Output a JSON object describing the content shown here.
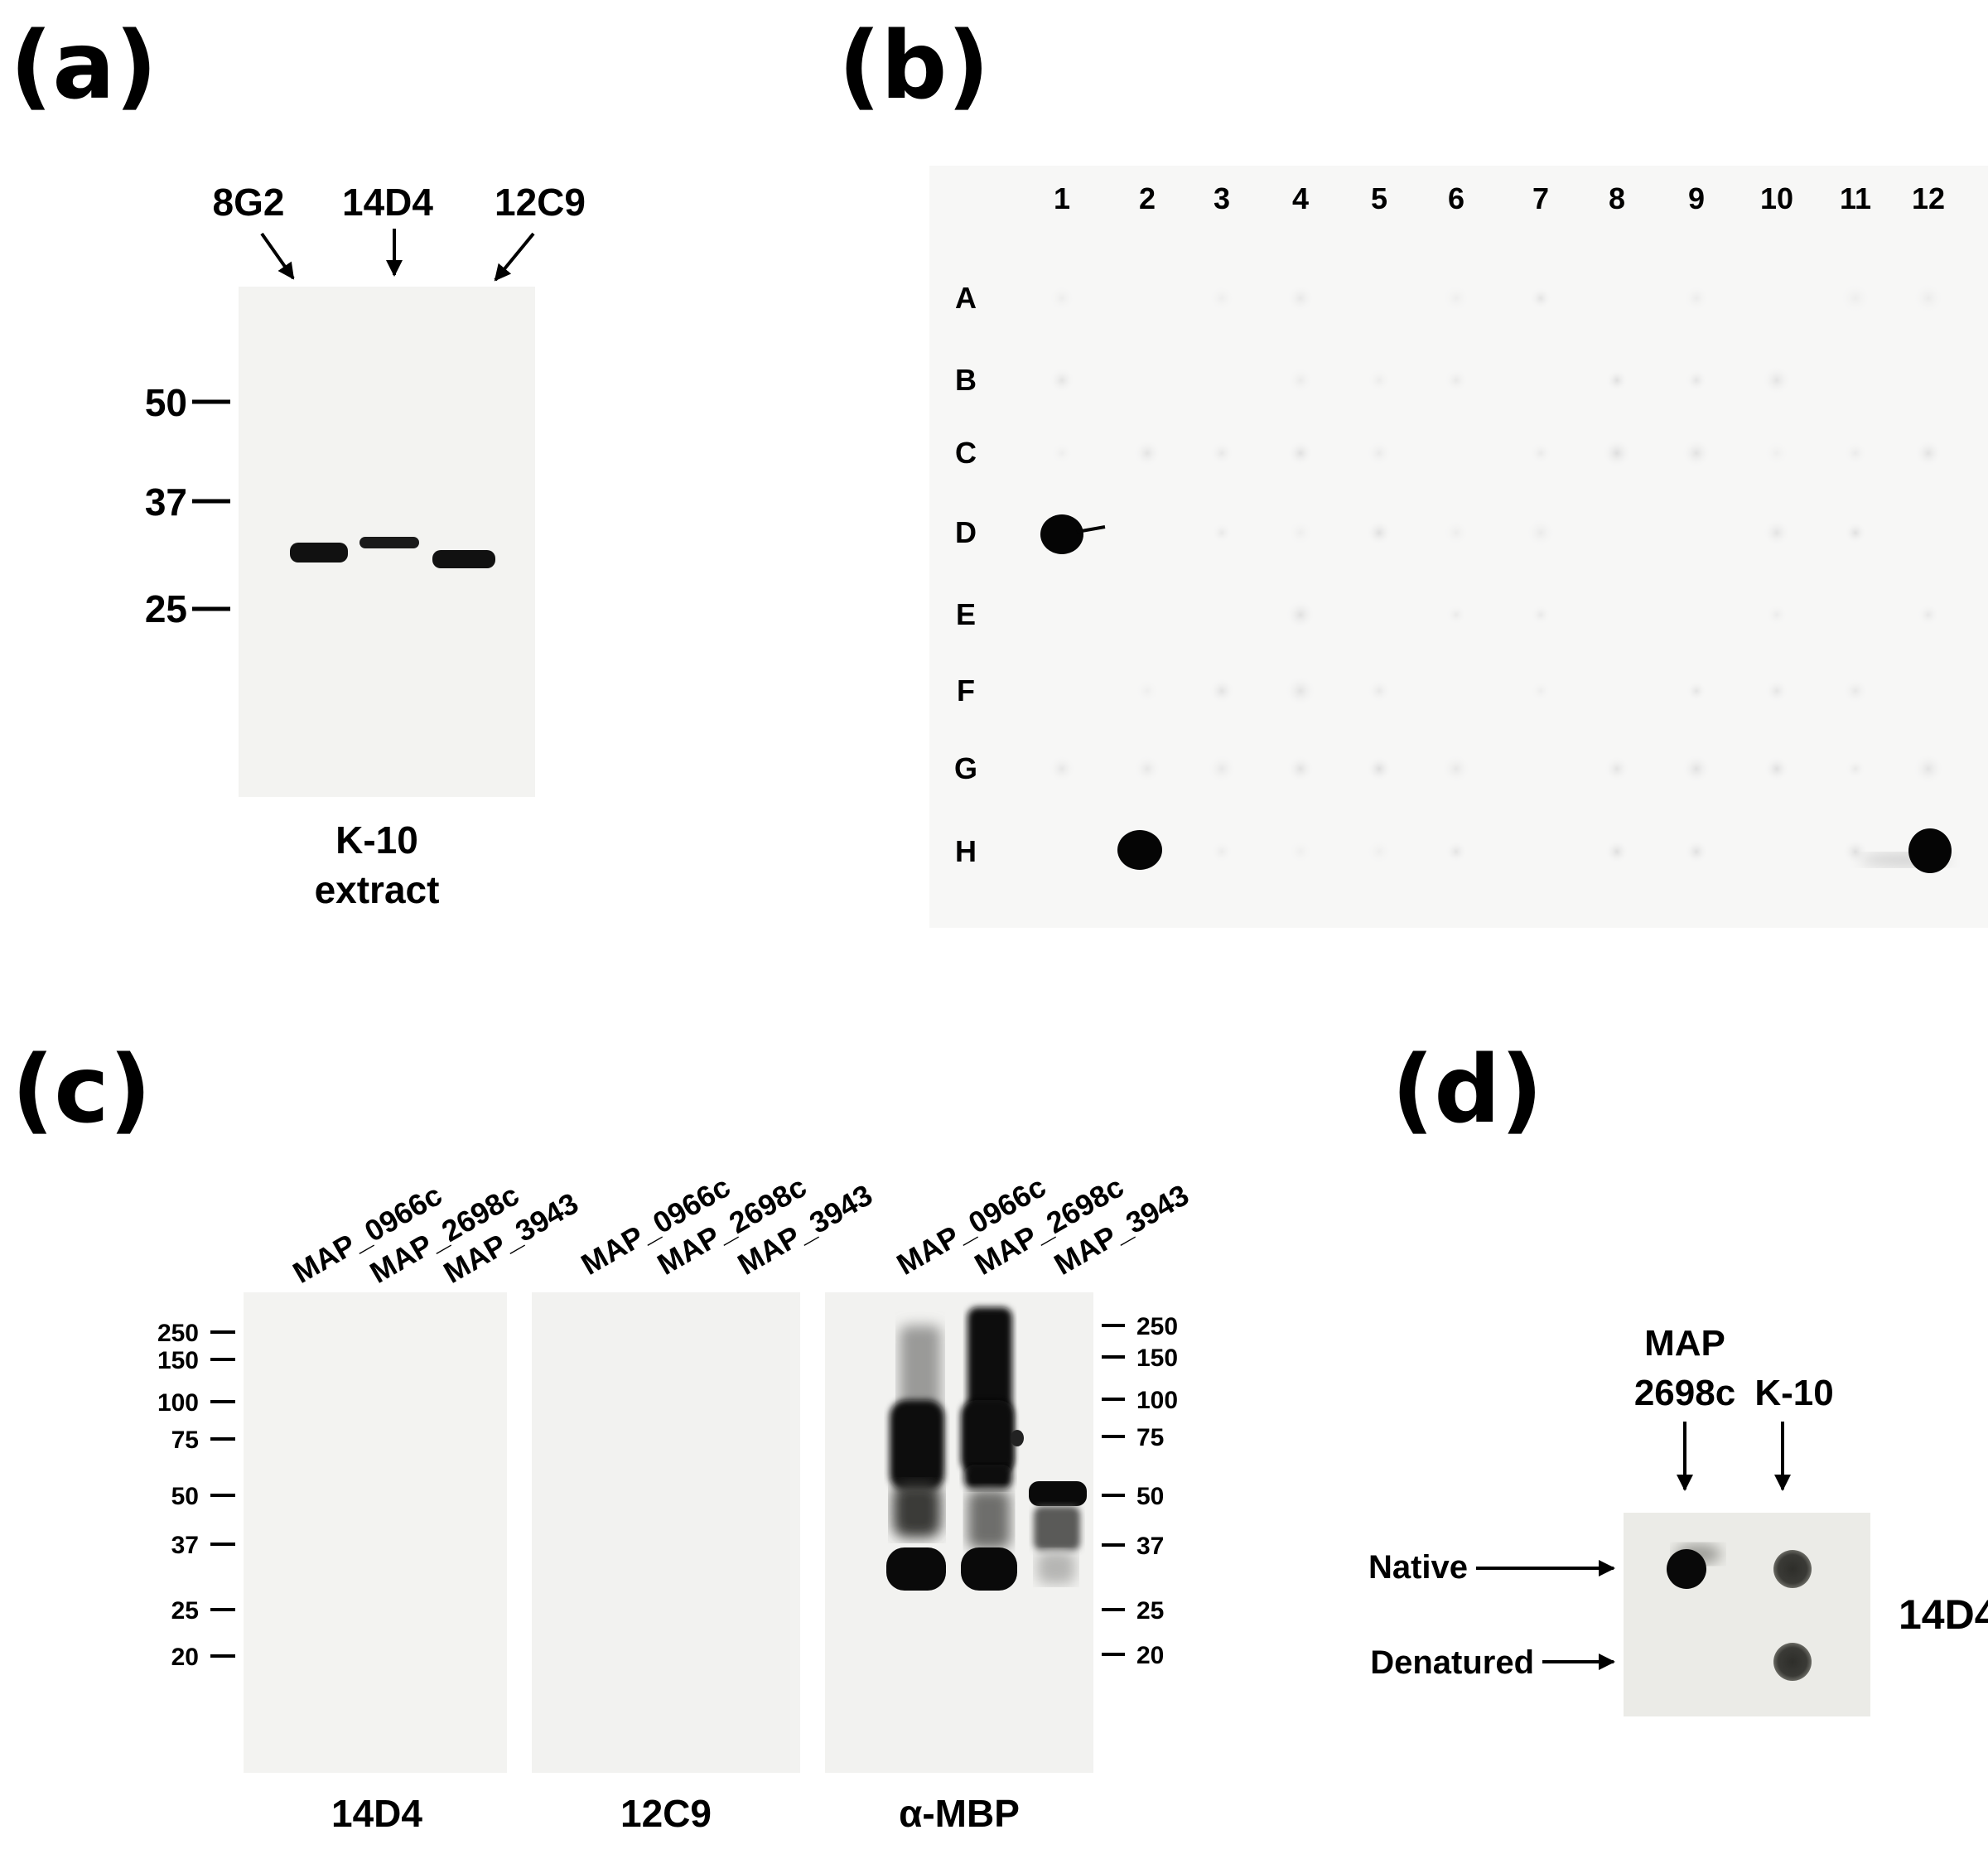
{
  "panel_a": {
    "letter": "(a)",
    "lane_labels": [
      "8G2",
      "14D4",
      "12C9"
    ],
    "mw_markers": [
      "50",
      "37",
      "25"
    ],
    "caption_line1": "K-10",
    "caption_line2": "extract"
  },
  "panel_b": {
    "letter": "(b)",
    "col_labels": [
      "1",
      "2",
      "3",
      "4",
      "5",
      "6",
      "7",
      "8",
      "9",
      "10",
      "11",
      "12"
    ],
    "row_labels": [
      "A",
      "B",
      "C",
      "D",
      "E",
      "F",
      "G",
      "H"
    ],
    "strong_spots": [
      "D1",
      "H2",
      "H12"
    ]
  },
  "panel_c": {
    "letter": "(c)",
    "lane_labels": [
      "MAP_0966c",
      "MAP_2698c",
      "MAP_3943"
    ],
    "mw_left": [
      "250",
      "150",
      "100",
      "75",
      "50",
      "37",
      "25",
      "20"
    ],
    "mw_right": [
      "250",
      "150",
      "100",
      "75",
      "50",
      "37",
      "25",
      "20"
    ],
    "blot_captions": [
      "14D4",
      "12C9",
      "α-MBP"
    ]
  },
  "panel_d": {
    "letter": "(d)",
    "col1_line1": "MAP",
    "col1_line2": "2698c",
    "col2_line1": "K-10",
    "row_native": "Native",
    "row_denatured": "Denatured",
    "antibody": "14D4"
  }
}
